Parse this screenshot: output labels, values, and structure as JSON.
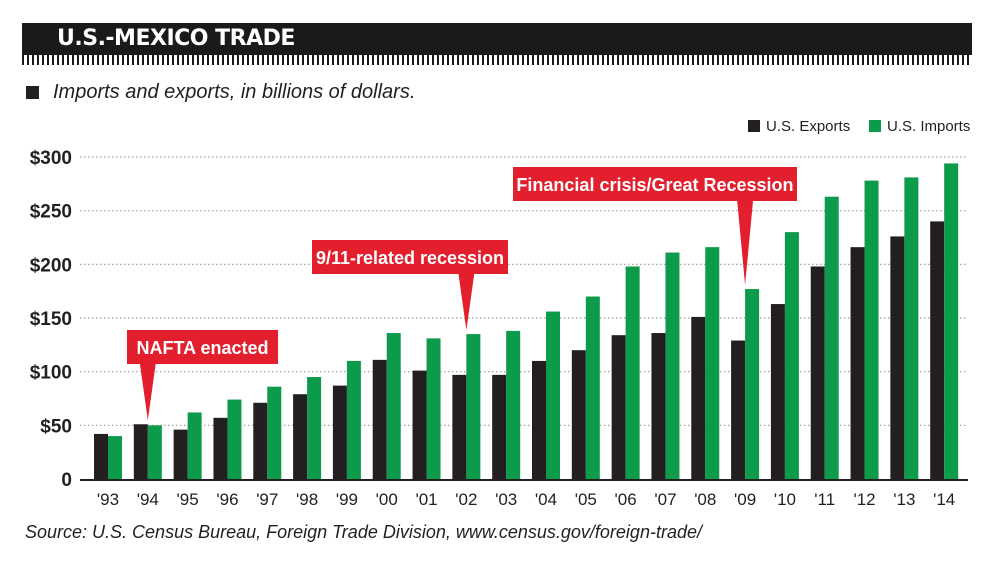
{
  "header": {
    "title": "U.S.-MEXICO TRADE"
  },
  "subtitle": "Imports and exports, in billions of dollars.",
  "source": "Source: U.S. Census Bureau, Foreign Trade Division, www.census.gov/foreign-trade/",
  "colors": {
    "exports": "#231f20",
    "imports": "#0c9b4a",
    "callout": "#e31e2d",
    "grid": "#9a9a9a"
  },
  "chart_data": {
    "type": "bar",
    "categories": [
      "'93",
      "'94",
      "'95",
      "'96",
      "'97",
      "'98",
      "'99",
      "'00",
      "'01",
      "'02",
      "'03",
      "'04",
      "'05",
      "'06",
      "'07",
      "'08",
      "'09",
      "'10",
      "'11",
      "'12",
      "'13",
      "'14"
    ],
    "series": [
      {
        "name": "U.S. Exports",
        "values": [
          42,
          51,
          46,
          57,
          71,
          79,
          87,
          111,
          101,
          97,
          97,
          110,
          120,
          134,
          136,
          151,
          129,
          163,
          198,
          216,
          226,
          240
        ]
      },
      {
        "name": "U.S. Imports",
        "values": [
          40,
          50,
          62,
          74,
          86,
          95,
          110,
          136,
          131,
          135,
          138,
          156,
          170,
          198,
          211,
          216,
          177,
          230,
          263,
          278,
          281,
          294
        ]
      }
    ],
    "yticks": [
      "0",
      "$50",
      "$100",
      "$150",
      "$200",
      "$250",
      "$300"
    ],
    "ylim": [
      0,
      300
    ],
    "legend": "top-right",
    "grid": true,
    "annotations": [
      {
        "text": "NAFTA enacted",
        "category": "'94"
      },
      {
        "text": "9/11-related recession",
        "category": "'02"
      },
      {
        "text": "Financial crisis/Great Recession",
        "category": "'09"
      }
    ]
  }
}
